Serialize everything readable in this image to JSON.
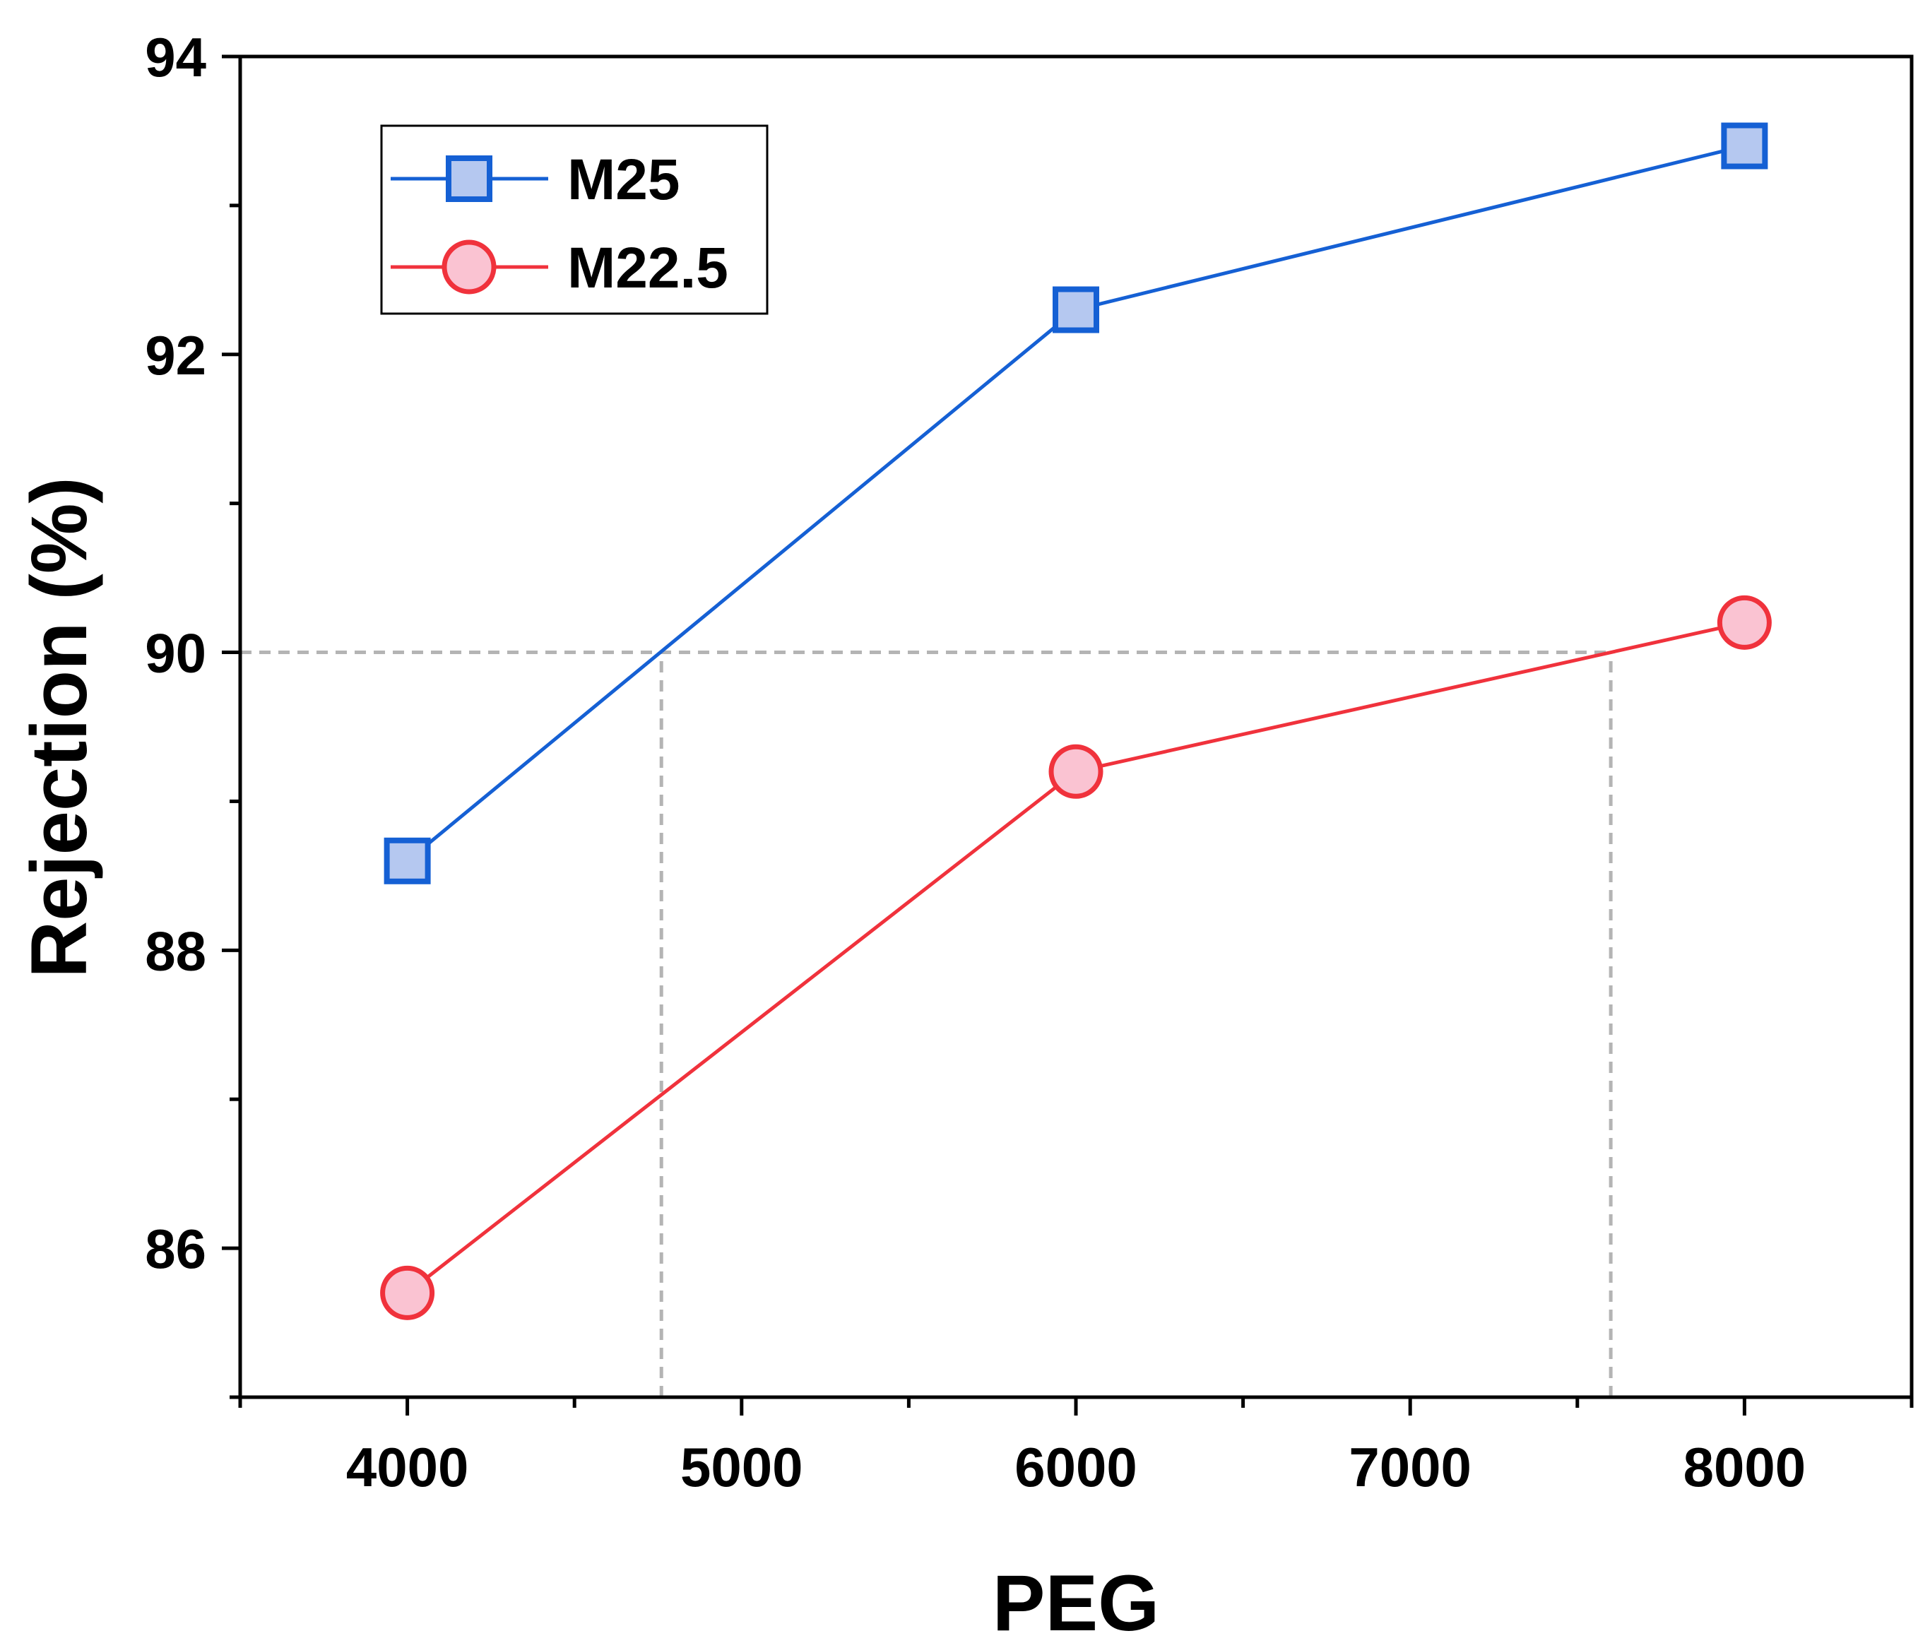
{
  "chart_data": {
    "type": "line",
    "title": "",
    "xlabel": "PEG",
    "ylabel": "Rejection (%)",
    "xlim": [
      3500,
      8500
    ],
    "ylim": [
      85,
      94
    ],
    "xticks": [
      4000,
      5000,
      6000,
      7000,
      8000
    ],
    "yticks": [
      86,
      88,
      90,
      92,
      94
    ],
    "x": [
      4000,
      6000,
      8000
    ],
    "series": [
      {
        "name": "M25",
        "marker": "square",
        "color": "#1560d4",
        "fill": "#b5c8f0",
        "values": [
          88.6,
          92.3,
          93.4
        ]
      },
      {
        "name": "M22.5",
        "marker": "circle",
        "color": "#f0323c",
        "fill": "#fac3d2",
        "values": [
          85.7,
          89.2,
          90.2
        ]
      }
    ],
    "reference_lines": [
      {
        "type": "horizontal",
        "y": 90,
        "x_from": 3500,
        "x_to": 7600
      },
      {
        "type": "vertical",
        "x": 4760,
        "y_from": 85,
        "y_to": 90
      },
      {
        "type": "vertical",
        "x": 7600,
        "y_from": 85,
        "y_to": 90
      }
    ],
    "grid": false,
    "legend_position": "top-left"
  }
}
